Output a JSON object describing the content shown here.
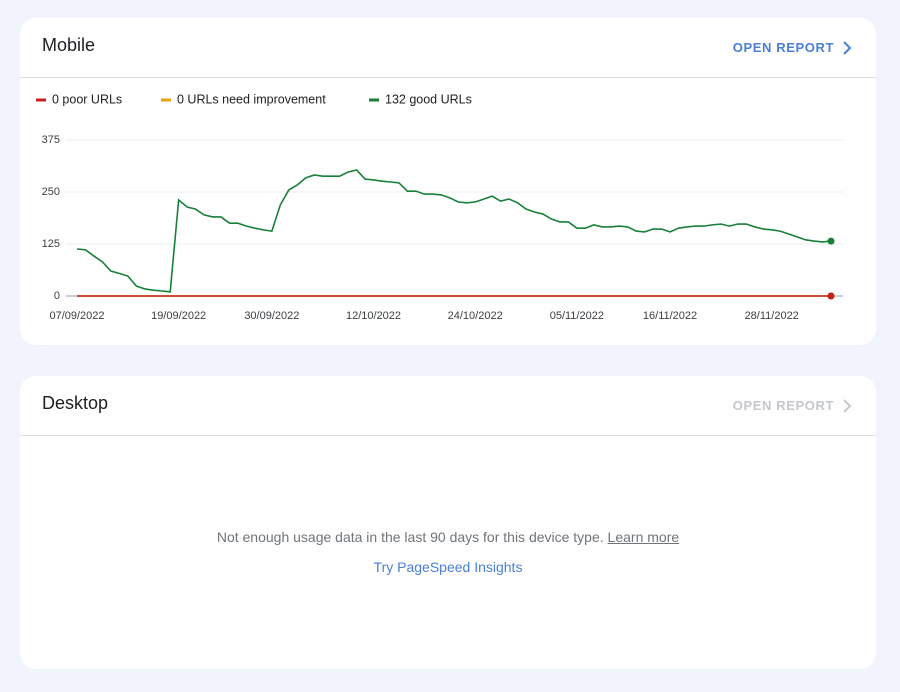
{
  "mobile": {
    "title": "Mobile",
    "open_report": "OPEN REPORT",
    "chart_data": {
      "type": "line",
      "x": [
        "07/09/2022",
        "08/09/2022",
        "09/09/2022",
        "10/09/2022",
        "11/09/2022",
        "12/09/2022",
        "13/09/2022",
        "14/09/2022",
        "15/09/2022",
        "16/09/2022",
        "17/09/2022",
        "18/09/2022",
        "19/09/2022",
        "20/09/2022",
        "21/09/2022",
        "22/09/2022",
        "23/09/2022",
        "24/09/2022",
        "25/09/2022",
        "26/09/2022",
        "27/09/2022",
        "28/09/2022",
        "29/09/2022",
        "30/09/2022",
        "01/10/2022",
        "02/10/2022",
        "03/10/2022",
        "04/10/2022",
        "05/10/2022",
        "06/10/2022",
        "07/10/2022",
        "08/10/2022",
        "09/10/2022",
        "10/10/2022",
        "11/10/2022",
        "12/10/2022",
        "13/10/2022",
        "14/10/2022",
        "15/10/2022",
        "16/10/2022",
        "17/10/2022",
        "18/10/2022",
        "19/10/2022",
        "20/10/2022",
        "21/10/2022",
        "22/10/2022",
        "23/10/2022",
        "24/10/2022",
        "25/10/2022",
        "26/10/2022",
        "27/10/2022",
        "28/10/2022",
        "29/10/2022",
        "30/10/2022",
        "31/10/2022",
        "01/11/2022",
        "02/11/2022",
        "03/11/2022",
        "04/11/2022",
        "05/11/2022",
        "06/11/2022",
        "07/11/2022",
        "08/11/2022",
        "09/11/2022",
        "10/11/2022",
        "11/11/2022",
        "12/11/2022",
        "13/11/2022",
        "14/11/2022",
        "15/11/2022",
        "16/11/2022",
        "17/11/2022",
        "18/11/2022",
        "19/11/2022",
        "20/11/2022",
        "21/11/2022",
        "22/11/2022",
        "23/11/2022",
        "24/11/2022",
        "25/11/2022",
        "26/11/2022",
        "27/11/2022",
        "28/11/2022",
        "29/11/2022",
        "30/11/2022",
        "01/12/2022",
        "02/12/2022",
        "03/12/2022",
        "04/12/2022",
        "05/12/2022"
      ],
      "series": [
        {
          "name": "0 poor URLs",
          "color": "#c5221f",
          "values": [
            0,
            0,
            0,
            0,
            0,
            0,
            0,
            0,
            0,
            0,
            0,
            0,
            0,
            0,
            0,
            0,
            0,
            0,
            0,
            0,
            0,
            0,
            0,
            0,
            0,
            0,
            0,
            0,
            0,
            0,
            0,
            0,
            0,
            0,
            0,
            0,
            0,
            0,
            0,
            0,
            0,
            0,
            0,
            0,
            0,
            0,
            0,
            0,
            0,
            0,
            0,
            0,
            0,
            0,
            0,
            0,
            0,
            0,
            0,
            0,
            0,
            0,
            0,
            0,
            0,
            0,
            0,
            0,
            0,
            0,
            0,
            0,
            0,
            0,
            0,
            0,
            0,
            0,
            0,
            0,
            0,
            0,
            0,
            0,
            0,
            0,
            0,
            0,
            0,
            0
          ]
        },
        {
          "name": "0 URLs need improvement",
          "color": "#e8a300",
          "values": [
            0,
            0,
            0,
            0,
            0,
            0,
            0,
            0,
            0,
            0,
            0,
            0,
            0,
            0,
            0,
            0,
            0,
            0,
            0,
            0,
            0,
            0,
            0,
            0,
            0,
            0,
            0,
            0,
            0,
            0,
            0,
            0,
            0,
            0,
            0,
            0,
            0,
            0,
            0,
            0,
            0,
            0,
            0,
            0,
            0,
            0,
            0,
            0,
            0,
            0,
            0,
            0,
            0,
            0,
            0,
            0,
            0,
            0,
            0,
            0,
            0,
            0,
            0,
            0,
            0,
            0,
            0,
            0,
            0,
            0,
            0,
            0,
            0,
            0,
            0,
            0,
            0,
            0,
            0,
            0,
            0,
            0,
            0,
            0,
            0,
            0,
            0,
            0,
            0,
            0
          ]
        },
        {
          "name": "132 good URLs",
          "color": "#188038",
          "values": [
            113,
            111,
            96,
            82,
            60,
            54,
            48,
            24,
            17,
            14,
            12,
            10,
            231,
            214,
            209,
            195,
            190,
            190,
            175,
            175,
            168,
            163,
            159,
            156,
            219,
            255,
            267,
            284,
            291,
            288,
            288,
            288,
            298,
            303,
            281,
            279,
            276,
            274,
            272,
            252,
            252,
            245,
            245,
            243,
            236,
            226,
            224,
            226,
            233,
            240,
            228,
            233,
            224,
            209,
            202,
            197,
            185,
            178,
            178,
            163,
            163,
            171,
            166,
            166,
            168,
            166,
            156,
            154,
            161,
            161,
            154,
            163,
            166,
            168,
            168,
            171,
            173,
            168,
            173,
            173,
            166,
            161,
            159,
            156,
            149,
            142,
            135,
            132,
            130,
            132
          ]
        }
      ],
      "xticks": [
        "07/09/2022",
        "19/09/2022",
        "30/09/2022",
        "12/10/2022",
        "24/10/2022",
        "05/11/2022",
        "16/11/2022",
        "28/11/2022"
      ],
      "ylim": [
        0,
        375
      ],
      "yticks": [
        0,
        125,
        250,
        375
      ],
      "grid": true
    }
  },
  "desktop": {
    "title": "Desktop",
    "open_report": "OPEN REPORT",
    "message": "Not enough usage data in the last 90 days for this device type.",
    "learn_more": "Learn more",
    "pagespeed_link": "Try PageSpeed Insights"
  }
}
